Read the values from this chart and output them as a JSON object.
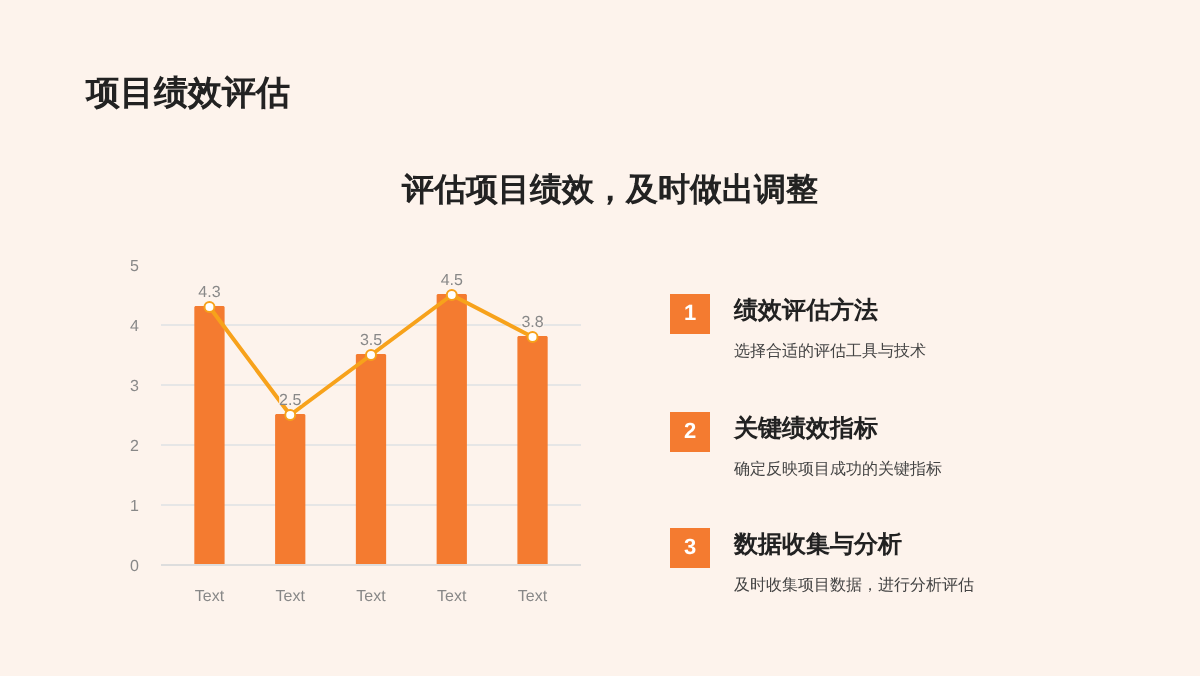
{
  "chart_data": {
    "type": "bar",
    "title": "项目绩效评估",
    "subtitle": "评估项目绩效，及时做出调整",
    "categories": [
      "Text",
      "Text",
      "Text",
      "Text",
      "Text"
    ],
    "series": [
      {
        "color": "#f47b30",
        "values": [
          4.3,
          2.5,
          3.5,
          4.5,
          3.8
        ]
      },
      {
        "type": "line",
        "color": "#f7a21b",
        "values": [
          4.3,
          2.5,
          3.5,
          4.5,
          3.8
        ],
        "value_labels": [
          "4.3",
          "2.5",
          "3.5",
          "4.5",
          "3.8"
        ],
        "marker": "circle"
      }
    ],
    "ylim": [
      0,
      5
    ],
    "yticks": [
      0,
      1,
      2,
      3,
      4,
      5
    ],
    "grid": "y",
    "annotations": [
      "1",
      "绩效评估方法",
      "选择合适的评估工具与技术",
      "2",
      "关键绩效指标",
      "确定反映项目成功的关键指标",
      "3",
      "数据收集与分析",
      "及时收集项目数据，进行分析评估"
    ]
  }
}
